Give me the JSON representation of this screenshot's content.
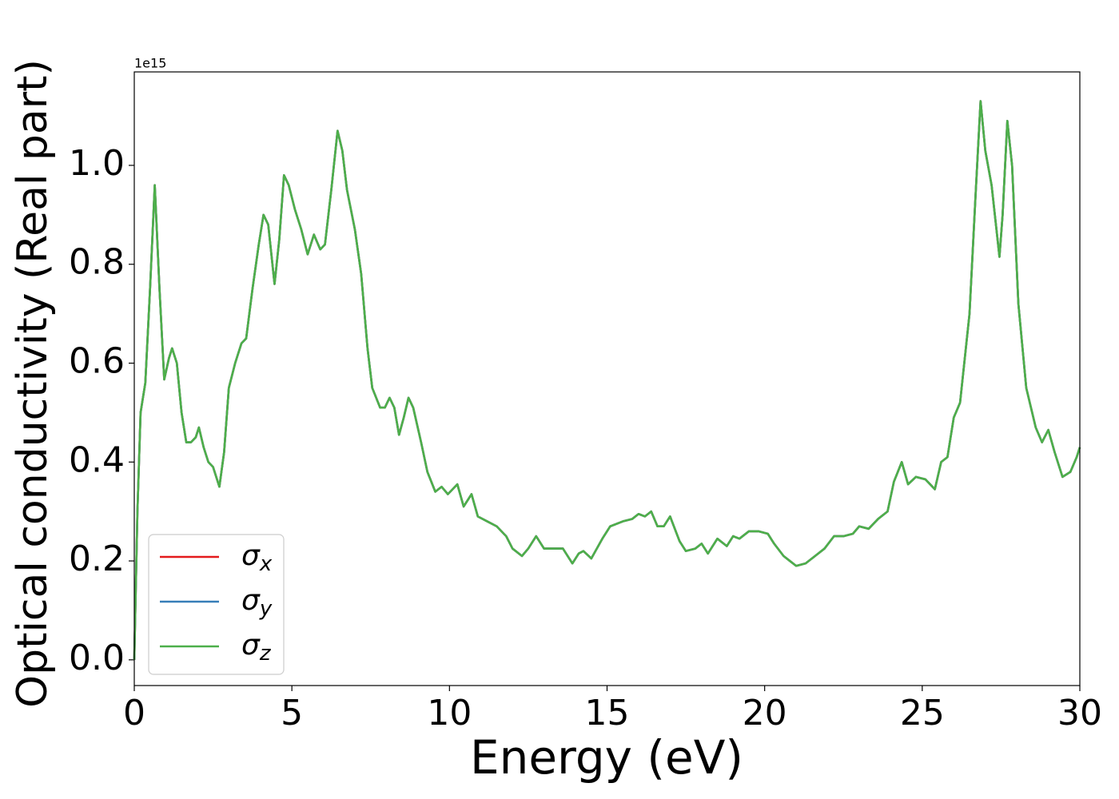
{
  "chart_data": {
    "type": "line",
    "xlabel": "Energy (eV)",
    "ylabel": "Optical conductivity (Real part)",
    "y_offset_label": "1e15",
    "xlim": [
      0,
      30
    ],
    "ylim": [
      -0.052,
      1.189
    ],
    "xticks": [
      0,
      5,
      10,
      15,
      20,
      25,
      30
    ],
    "yticks": [
      {
        "value": 0,
        "label": "0.0"
      },
      0.2,
      0.4,
      0.6,
      0.8,
      {
        "value": 1,
        "label": "1.0"
      }
    ],
    "legend": "lower left",
    "x": [
      0,
      0.1,
      0.2,
      0.35,
      0.5,
      0.65,
      0.8,
      0.95,
      1.1,
      1.2,
      1.35,
      1.5,
      1.65,
      1.8,
      1.95,
      2.05,
      2.2,
      2.35,
      2.5,
      2.7,
      2.85,
      3.0,
      3.2,
      3.4,
      3.55,
      3.75,
      3.95,
      4.1,
      4.25,
      4.45,
      4.6,
      4.75,
      4.9,
      5.1,
      5.3,
      5.5,
      5.7,
      5.9,
      6.05,
      6.25,
      6.45,
      6.6,
      6.75,
      7.0,
      7.2,
      7.4,
      7.55,
      7.8,
      7.95,
      8.1,
      8.25,
      8.4,
      8.55,
      8.7,
      8.85,
      9.1,
      9.3,
      9.55,
      9.75,
      9.95,
      10.25,
      10.45,
      10.7,
      10.9,
      11.2,
      11.5,
      11.8,
      12.0,
      12.3,
      12.5,
      12.75,
      13.0,
      13.3,
      13.6,
      13.9,
      14.1,
      14.25,
      14.5,
      14.85,
      15.1,
      15.5,
      15.8,
      16.0,
      16.2,
      16.4,
      16.6,
      16.8,
      17.0,
      17.3,
      17.5,
      17.8,
      18.0,
      18.2,
      18.5,
      18.8,
      19.0,
      19.2,
      19.5,
      19.8,
      20.1,
      20.3,
      20.6,
      20.8,
      21.0,
      21.3,
      21.6,
      21.9,
      22.2,
      22.5,
      22.8,
      23.0,
      23.3,
      23.6,
      23.9,
      24.1,
      24.35,
      24.55,
      24.8,
      25.1,
      25.4,
      25.6,
      25.8,
      26.0,
      26.2,
      26.5,
      26.7,
      26.85,
      27.0,
      27.2,
      27.45,
      27.55,
      27.7,
      27.85,
      28.05,
      28.3,
      28.6,
      28.8,
      29.0,
      29.2,
      29.45,
      29.7,
      29.9,
      30.0
    ],
    "series": [
      {
        "name": "σx",
        "color": "#e41a1c",
        "values": [
          0,
          0.3,
          0.5,
          0.56,
          0.75,
          0.96,
          0.75,
          0.567,
          0.61,
          0.63,
          0.6,
          0.5,
          0.44,
          0.44,
          0.45,
          0.47,
          0.43,
          0.4,
          0.39,
          0.35,
          0.42,
          0.55,
          0.6,
          0.64,
          0.65,
          0.75,
          0.84,
          0.9,
          0.88,
          0.76,
          0.85,
          0.98,
          0.96,
          0.91,
          0.87,
          0.82,
          0.86,
          0.83,
          0.84,
          0.95,
          1.07,
          1.03,
          0.95,
          0.87,
          0.78,
          0.63,
          0.55,
          0.51,
          0.51,
          0.53,
          0.51,
          0.455,
          0.49,
          0.53,
          0.51,
          0.44,
          0.38,
          0.34,
          0.35,
          0.335,
          0.355,
          0.31,
          0.335,
          0.29,
          0.28,
          0.27,
          0.25,
          0.225,
          0.21,
          0.225,
          0.25,
          0.225,
          0.225,
          0.225,
          0.195,
          0.215,
          0.22,
          0.205,
          0.245,
          0.27,
          0.28,
          0.285,
          0.295,
          0.29,
          0.3,
          0.27,
          0.27,
          0.29,
          0.24,
          0.22,
          0.225,
          0.235,
          0.215,
          0.245,
          0.23,
          0.25,
          0.245,
          0.26,
          0.26,
          0.255,
          0.235,
          0.21,
          0.2,
          0.19,
          0.195,
          0.21,
          0.225,
          0.25,
          0.25,
          0.255,
          0.27,
          0.265,
          0.285,
          0.3,
          0.36,
          0.4,
          0.355,
          0.37,
          0.365,
          0.345,
          0.4,
          0.41,
          0.49,
          0.52,
          0.7,
          0.95,
          1.13,
          1.03,
          0.96,
          0.815,
          0.9,
          1.09,
          1.0,
          0.72,
          0.55,
          0.47,
          0.44,
          0.465,
          0.42,
          0.37,
          0.38,
          0.41,
          0.43
        ]
      },
      {
        "name": "σy",
        "color": "#377eb8",
        "values": [
          0,
          0.3,
          0.5,
          0.56,
          0.75,
          0.96,
          0.75,
          0.567,
          0.61,
          0.63,
          0.6,
          0.5,
          0.44,
          0.44,
          0.45,
          0.47,
          0.43,
          0.4,
          0.39,
          0.35,
          0.42,
          0.55,
          0.6,
          0.64,
          0.65,
          0.75,
          0.84,
          0.9,
          0.88,
          0.76,
          0.85,
          0.98,
          0.96,
          0.91,
          0.87,
          0.82,
          0.86,
          0.83,
          0.84,
          0.95,
          1.07,
          1.03,
          0.95,
          0.87,
          0.78,
          0.63,
          0.55,
          0.51,
          0.51,
          0.53,
          0.51,
          0.455,
          0.49,
          0.53,
          0.51,
          0.44,
          0.38,
          0.34,
          0.35,
          0.335,
          0.355,
          0.31,
          0.335,
          0.29,
          0.28,
          0.27,
          0.25,
          0.225,
          0.21,
          0.225,
          0.25,
          0.225,
          0.225,
          0.225,
          0.195,
          0.215,
          0.22,
          0.205,
          0.245,
          0.27,
          0.28,
          0.285,
          0.295,
          0.29,
          0.3,
          0.27,
          0.27,
          0.29,
          0.24,
          0.22,
          0.225,
          0.235,
          0.215,
          0.245,
          0.23,
          0.25,
          0.245,
          0.26,
          0.26,
          0.255,
          0.235,
          0.21,
          0.2,
          0.19,
          0.195,
          0.21,
          0.225,
          0.25,
          0.25,
          0.255,
          0.27,
          0.265,
          0.285,
          0.3,
          0.36,
          0.4,
          0.355,
          0.37,
          0.365,
          0.345,
          0.4,
          0.41,
          0.49,
          0.52,
          0.7,
          0.95,
          1.13,
          1.03,
          0.96,
          0.815,
          0.9,
          1.09,
          1.0,
          0.72,
          0.55,
          0.47,
          0.44,
          0.465,
          0.42,
          0.37,
          0.38,
          0.41,
          0.43
        ]
      },
      {
        "name": "σz",
        "color": "#4daf4a",
        "values": [
          0,
          0.3,
          0.5,
          0.56,
          0.75,
          0.96,
          0.75,
          0.567,
          0.61,
          0.63,
          0.6,
          0.5,
          0.44,
          0.44,
          0.45,
          0.47,
          0.43,
          0.4,
          0.39,
          0.35,
          0.42,
          0.55,
          0.6,
          0.64,
          0.65,
          0.75,
          0.84,
          0.9,
          0.88,
          0.76,
          0.85,
          0.98,
          0.96,
          0.91,
          0.87,
          0.82,
          0.86,
          0.83,
          0.84,
          0.95,
          1.07,
          1.03,
          0.95,
          0.87,
          0.78,
          0.63,
          0.55,
          0.51,
          0.51,
          0.53,
          0.51,
          0.455,
          0.49,
          0.53,
          0.51,
          0.44,
          0.38,
          0.34,
          0.35,
          0.335,
          0.355,
          0.31,
          0.335,
          0.29,
          0.28,
          0.27,
          0.25,
          0.225,
          0.21,
          0.225,
          0.25,
          0.225,
          0.225,
          0.225,
          0.195,
          0.215,
          0.22,
          0.205,
          0.245,
          0.27,
          0.28,
          0.285,
          0.295,
          0.29,
          0.3,
          0.27,
          0.27,
          0.29,
          0.24,
          0.22,
          0.225,
          0.235,
          0.215,
          0.245,
          0.23,
          0.25,
          0.245,
          0.26,
          0.26,
          0.255,
          0.235,
          0.21,
          0.2,
          0.19,
          0.195,
          0.21,
          0.225,
          0.25,
          0.25,
          0.255,
          0.27,
          0.265,
          0.285,
          0.3,
          0.36,
          0.4,
          0.355,
          0.37,
          0.365,
          0.345,
          0.4,
          0.41,
          0.49,
          0.52,
          0.7,
          0.95,
          1.13,
          1.03,
          0.96,
          0.815,
          0.9,
          1.09,
          1.0,
          0.72,
          0.55,
          0.47,
          0.44,
          0.465,
          0.42,
          0.37,
          0.38,
          0.41,
          0.43
        ]
      }
    ]
  }
}
